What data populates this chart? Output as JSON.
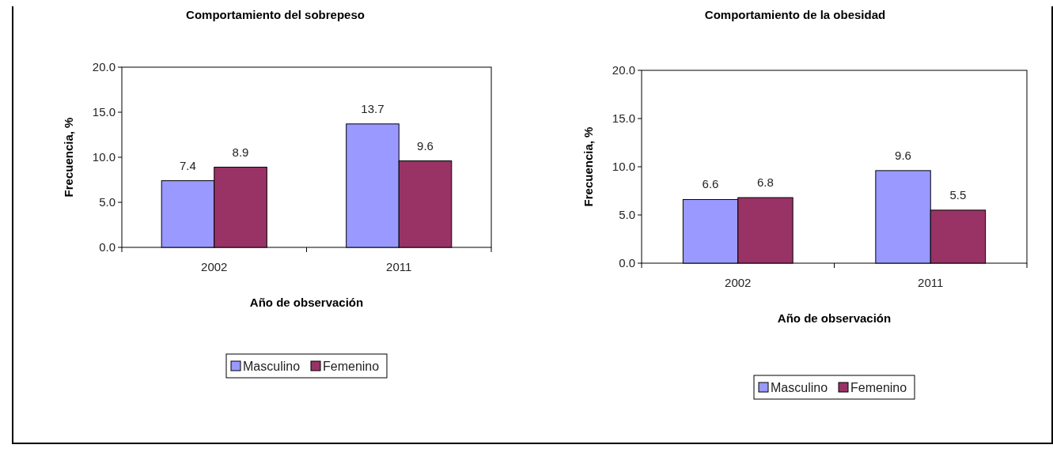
{
  "chart_data": [
    {
      "type": "bar",
      "title": "Comportamiento del sobrepeso",
      "xlabel": "Año de observación",
      "ylabel": "Frecuencia, %",
      "categories": [
        "2002",
        "2011"
      ],
      "series": [
        {
          "name": "Masculino",
          "color": "#9999ff",
          "values": [
            7.4,
            13.7
          ]
        },
        {
          "name": "Femenino",
          "color": "#993366",
          "values": [
            8.9,
            9.6
          ]
        }
      ],
      "ylim": [
        0,
        20
      ],
      "yticks": [
        {
          "value": 0,
          "label": "0.0"
        },
        {
          "value": 5,
          "label": "5.0"
        },
        {
          "value": 10,
          "label": "10.0"
        },
        {
          "value": 15,
          "label": "15.0"
        },
        {
          "value": 20,
          "label": "20.0"
        }
      ],
      "data_labels": true,
      "legend": "bottom",
      "grid": false
    },
    {
      "type": "bar",
      "title": "Comportamiento de la obesidad",
      "xlabel": "Año de observación",
      "ylabel": "Frecuencia, %",
      "categories": [
        "2002",
        "2011"
      ],
      "series": [
        {
          "name": "Masculino",
          "color": "#9999ff",
          "values": [
            6.6,
            9.6
          ]
        },
        {
          "name": "Femenino",
          "color": "#993366",
          "values": [
            6.8,
            5.5
          ]
        }
      ],
      "ylim": [
        0,
        20
      ],
      "yticks": [
        {
          "value": 0,
          "label": "0.0"
        },
        {
          "value": 5,
          "label": "5.0"
        },
        {
          "value": 10,
          "label": "10.0"
        },
        {
          "value": 15,
          "label": "15.0"
        },
        {
          "value": 20,
          "label": "20.0"
        }
      ],
      "data_labels": true,
      "legend": "bottom",
      "grid": false
    }
  ]
}
